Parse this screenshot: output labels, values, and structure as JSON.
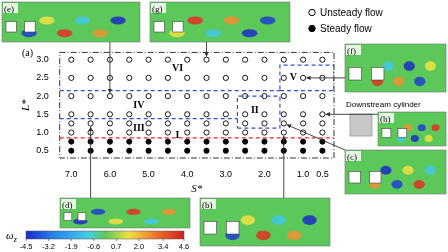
{
  "chart_data": {
    "type": "scatter",
    "panel_label": "(a)",
    "x_label": "S*",
    "y_label": "L*",
    "xlim": [
      7.3,
      0.2
    ],
    "ylim": [
      0.3,
      3.2
    ],
    "xticks": [
      {
        "value": 7,
        "label": "7.0"
      },
      {
        "value": 6,
        "label": "6.0"
      },
      {
        "value": 5,
        "label": "5.0"
      },
      {
        "value": 4,
        "label": "4.0"
      },
      {
        "value": 3,
        "label": "3.0"
      },
      {
        "value": 2,
        "label": "2.0"
      },
      {
        "value": 1,
        "label": "1.0"
      },
      0.5
    ],
    "yticks": [
      0.5,
      {
        "value": 1,
        "label": "1.0"
      },
      1.5,
      {
        "value": 2,
        "label": "2.0"
      },
      2.5,
      {
        "value": 3,
        "label": "3.0"
      }
    ],
    "grid": false,
    "legend": "upper right",
    "series": [
      {
        "name": "Unsteady flow",
        "color": "#000000",
        "marker": "circle_open",
        "x": [
          7,
          6.5,
          6,
          5.5,
          5,
          4.5,
          4,
          3.5,
          3,
          2.5,
          2,
          1.5,
          1,
          0.5,
          7,
          6.5,
          6,
          5.5,
          5,
          4.5,
          4,
          3.5,
          3,
          2.5,
          2,
          1.5,
          1,
          0.5,
          7,
          6.5,
          6,
          5.5,
          5,
          4.5,
          4,
          3.5,
          3,
          2.5,
          2,
          1.5,
          1,
          0.5,
          7,
          6.5,
          6,
          5.5,
          5,
          4.5,
          4,
          3.5,
          3,
          2.5,
          2,
          1.5,
          1,
          0.5,
          7,
          6.5,
          6,
          5.5,
          5,
          4.5,
          4,
          3.5,
          3,
          2.5,
          2,
          1.5,
          1,
          0.5,
          7,
          6.5,
          6,
          5.5,
          5,
          4.5,
          4,
          3.5,
          3,
          2.5,
          2,
          1.5,
          1,
          0.5
        ],
        "values": [
          1,
          1,
          1,
          1,
          1,
          1,
          1,
          1,
          1,
          1,
          1,
          1,
          1,
          1,
          1.25,
          1.25,
          1.25,
          1.25,
          1.25,
          1.25,
          1.25,
          1.25,
          1.25,
          1.25,
          1.25,
          1.25,
          1.25,
          1.25,
          1.5,
          1.5,
          1.5,
          1.5,
          1.5,
          1.5,
          1.5,
          1.5,
          1.5,
          1.5,
          1.5,
          1.5,
          1.5,
          1.5,
          2,
          2,
          2,
          2,
          2,
          2,
          2,
          2,
          2,
          2,
          2,
          2,
          2,
          2,
          2.5,
          2.5,
          2.5,
          2.5,
          2.5,
          2.5,
          2.5,
          2.5,
          2.5,
          2.5,
          2.5,
          2.5,
          2.5,
          2.5,
          3,
          3,
          3,
          3,
          3,
          3,
          3,
          3,
          3,
          3,
          3,
          3,
          3,
          3
        ]
      },
      {
        "name": "Steady flow",
        "color": "#000000",
        "marker": "circle_filled",
        "x": [
          7,
          6.5,
          6,
          5.5,
          5,
          4.5,
          4,
          3.5,
          3,
          2.5,
          2,
          1.5,
          1,
          0.5,
          7,
          6.5,
          6,
          5.5,
          5,
          4.5,
          4,
          3.5,
          3,
          2.5,
          2,
          1.5,
          1,
          0.5
        ],
        "values": [
          0.5,
          0.5,
          0.5,
          0.5,
          0.5,
          0.5,
          0.5,
          0.5,
          0.5,
          0.5,
          0.5,
          0.5,
          0.5,
          0.5,
          0.75,
          0.75,
          0.75,
          0.75,
          0.75,
          0.75,
          0.75,
          0.75,
          0.75,
          0.75,
          0.75,
          0.75,
          0.75,
          0.75
        ]
      }
    ],
    "boundaries": [
      {
        "color": "#e8262a",
        "line_style": "dashed",
        "points": [
          [
            7.3,
            0.85
          ],
          [
            0.2,
            0.85
          ]
        ]
      },
      {
        "color": "#3050c8",
        "line_style": "dashed",
        "points": [
          [
            7.3,
            1.38
          ],
          [
            2.7,
            1.38
          ]
        ]
      },
      {
        "color": "#3050c8",
        "line_style": "dashed",
        "points": [
          [
            7.3,
            2.15
          ],
          [
            1.6,
            2.15
          ]
        ]
      },
      {
        "color": "#3050c8",
        "line_style": "dashed",
        "points": [
          [
            2.7,
            1.12
          ],
          [
            1.6,
            1.12
          ],
          [
            1.6,
            2.0
          ],
          [
            2.7,
            2.0
          ],
          [
            2.7,
            1.12
          ]
        ]
      },
      {
        "color": "#3050c8",
        "line_style": "dashed",
        "points": [
          [
            1.6,
            2.15
          ],
          [
            0.2,
            2.15
          ],
          [
            0.2,
            2.85
          ],
          [
            1.6,
            2.85
          ],
          [
            1.6,
            2.15
          ]
        ]
      }
    ],
    "regions": [
      {
        "label": "I",
        "x": 4.25,
        "y": 0.93
      },
      {
        "label": "II",
        "x": 2.25,
        "y": 1.62
      },
      {
        "label": "III",
        "x": 5.25,
        "y": 1.12
      },
      {
        "label": "IV",
        "x": 5.25,
        "y": 1.75
      },
      {
        "label": "V",
        "x": 1.25,
        "y": 2.5
      },
      {
        "label": "VI",
        "x": 4.25,
        "y": 2.75
      }
    ],
    "annotation": "Downstream cylinder",
    "insets": [
      {
        "label": "(e)",
        "points_to": [
          6,
          2
        ]
      },
      {
        "label": "(g)",
        "points_to": [
          3.5,
          3
        ]
      },
      {
        "label": "(f)",
        "points_to": [
          1,
          2.5
        ]
      },
      {
        "label": "(h)",
        "points_to": [
          0.5,
          1.5
        ]
      },
      {
        "label": "(c)",
        "points_to": [
          1.5,
          1.25
        ]
      },
      {
        "label": "(d)",
        "points_to": [
          6.5,
          1.25
        ]
      },
      {
        "label": "(b)",
        "points_to": [
          1.5,
          1
        ]
      }
    ],
    "colorbar": {
      "title": "ω",
      "title_subscript": "z",
      "range": [
        -4.5,
        4.6
      ],
      "ticks": [
        -4.5,
        -3.2,
        -1.9,
        -0.6,
        0.7,
        {
          "value": 2,
          "label": "2.0"
        },
        3.4,
        4.6
      ]
    }
  }
}
